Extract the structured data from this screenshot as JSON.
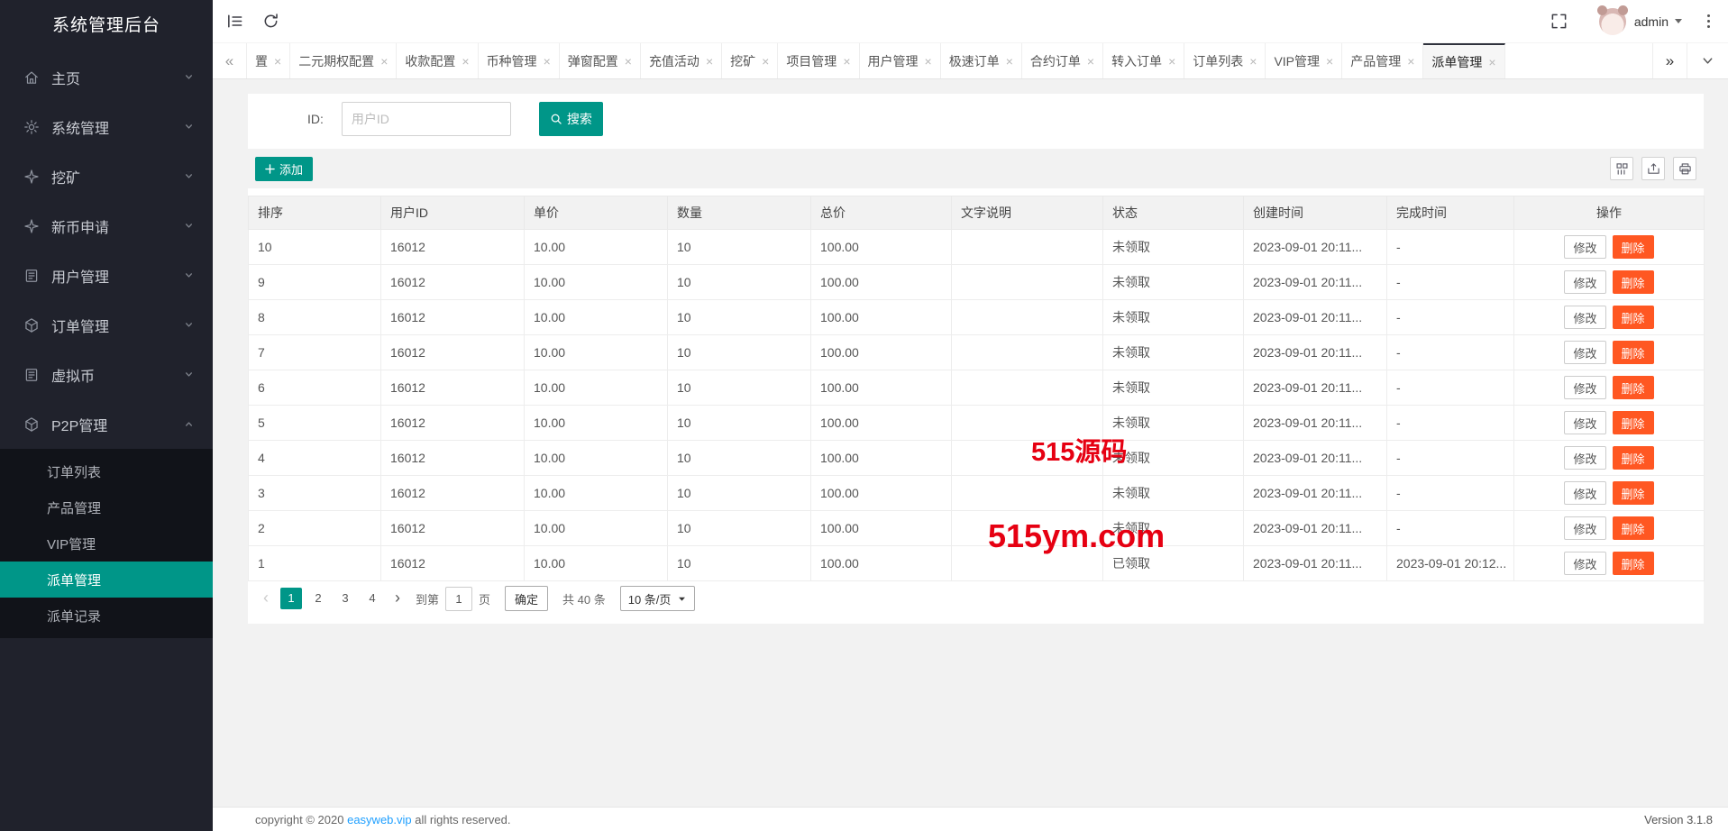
{
  "app": {
    "title": "系统管理后台"
  },
  "topbar": {
    "username": "admin"
  },
  "icons": {
    "tab_close": "×",
    "scroll_left": "«",
    "scroll_right": "»",
    "page_prev": "‹",
    "page_next": "›",
    "plus": "+"
  },
  "sidebar": {
    "items": [
      {
        "label": "主页",
        "icon": "home-icon"
      },
      {
        "label": "系统管理",
        "icon": "gear-icon"
      },
      {
        "label": "挖矿",
        "icon": "mining-icon"
      },
      {
        "label": "新币申请",
        "icon": "new-coin-icon"
      },
      {
        "label": "用户管理",
        "icon": "users-icon"
      },
      {
        "label": "订单管理",
        "icon": "orders-icon"
      },
      {
        "label": "虚拟币",
        "icon": "virtual-coin-icon"
      },
      {
        "label": "P2P管理",
        "icon": "p2p-icon",
        "expanded": true,
        "children": [
          {
            "label": "订单列表"
          },
          {
            "label": "产品管理"
          },
          {
            "label": "VIP管理"
          },
          {
            "label": "派单管理",
            "active": true
          },
          {
            "label": "派单记录"
          }
        ]
      }
    ]
  },
  "tabs": {
    "items": [
      {
        "label": "置"
      },
      {
        "label": "二元期权配置"
      },
      {
        "label": "收款配置"
      },
      {
        "label": "币种管理"
      },
      {
        "label": "弹窗配置"
      },
      {
        "label": "充值活动"
      },
      {
        "label": "挖矿"
      },
      {
        "label": "项目管理"
      },
      {
        "label": "用户管理"
      },
      {
        "label": "极速订单"
      },
      {
        "label": "合约订单"
      },
      {
        "label": "转入订单"
      },
      {
        "label": "订单列表"
      },
      {
        "label": "VIP管理"
      },
      {
        "label": "产品管理"
      },
      {
        "label": "派单管理",
        "active": true
      }
    ]
  },
  "search": {
    "label": "ID:",
    "placeholder": "用户ID",
    "button": "搜索"
  },
  "toolbar": {
    "add": "添加"
  },
  "table": {
    "columns": [
      "排序",
      "用户ID",
      "单价",
      "数量",
      "总价",
      "文字说明",
      "状态",
      "创建时间",
      "完成时间",
      "操作"
    ],
    "edit_label": "修改",
    "delete_label": "删除",
    "rows": [
      {
        "sort": "10",
        "uid": "16012",
        "price": "10.00",
        "qty": "10",
        "total": "100.00",
        "desc": "",
        "status": "未领取",
        "created": "2023-09-01 20:11...",
        "finished": "-"
      },
      {
        "sort": "9",
        "uid": "16012",
        "price": "10.00",
        "qty": "10",
        "total": "100.00",
        "desc": "",
        "status": "未领取",
        "created": "2023-09-01 20:11...",
        "finished": "-"
      },
      {
        "sort": "8",
        "uid": "16012",
        "price": "10.00",
        "qty": "10",
        "total": "100.00",
        "desc": "",
        "status": "未领取",
        "created": "2023-09-01 20:11...",
        "finished": "-"
      },
      {
        "sort": "7",
        "uid": "16012",
        "price": "10.00",
        "qty": "10",
        "total": "100.00",
        "desc": "",
        "status": "未领取",
        "created": "2023-09-01 20:11...",
        "finished": "-"
      },
      {
        "sort": "6",
        "uid": "16012",
        "price": "10.00",
        "qty": "10",
        "total": "100.00",
        "desc": "",
        "status": "未领取",
        "created": "2023-09-01 20:11...",
        "finished": "-"
      },
      {
        "sort": "5",
        "uid": "16012",
        "price": "10.00",
        "qty": "10",
        "total": "100.00",
        "desc": "",
        "status": "未领取",
        "created": "2023-09-01 20:11...",
        "finished": "-"
      },
      {
        "sort": "4",
        "uid": "16012",
        "price": "10.00",
        "qty": "10",
        "total": "100.00",
        "desc": "",
        "status": "未领取",
        "created": "2023-09-01 20:11...",
        "finished": "-"
      },
      {
        "sort": "3",
        "uid": "16012",
        "price": "10.00",
        "qty": "10",
        "total": "100.00",
        "desc": "",
        "status": "未领取",
        "created": "2023-09-01 20:11...",
        "finished": "-"
      },
      {
        "sort": "2",
        "uid": "16012",
        "price": "10.00",
        "qty": "10",
        "total": "100.00",
        "desc": "",
        "status": "未领取",
        "created": "2023-09-01 20:11...",
        "finished": "-"
      },
      {
        "sort": "1",
        "uid": "16012",
        "price": "10.00",
        "qty": "10",
        "total": "100.00",
        "desc": "",
        "status": "已领取",
        "created": "2023-09-01 20:11...",
        "finished": "2023-09-01 20:12..."
      }
    ]
  },
  "pagination": {
    "pages": [
      "1",
      "2",
      "3",
      "4"
    ],
    "active_page": "1",
    "jump_prefix": "到第",
    "jump_value": "1",
    "jump_suffix": "页",
    "confirm_label": "确定",
    "total_label": "共 40 条",
    "page_size": "10 条/页"
  },
  "footer": {
    "copyright_prefix": "copyright © 2020 ",
    "copyright_link": "easyweb.vip",
    "copyright_suffix": " all rights reserved.",
    "version": "Version 3.1.8"
  },
  "watermark": {
    "line1": "515源码",
    "line2": "515ym.com"
  },
  "colors": {
    "accent": "#009688",
    "danger": "#ff5722",
    "watermark": "#e60012",
    "sidebar_bg": "#20222c",
    "submenu_bg": "#111319"
  }
}
